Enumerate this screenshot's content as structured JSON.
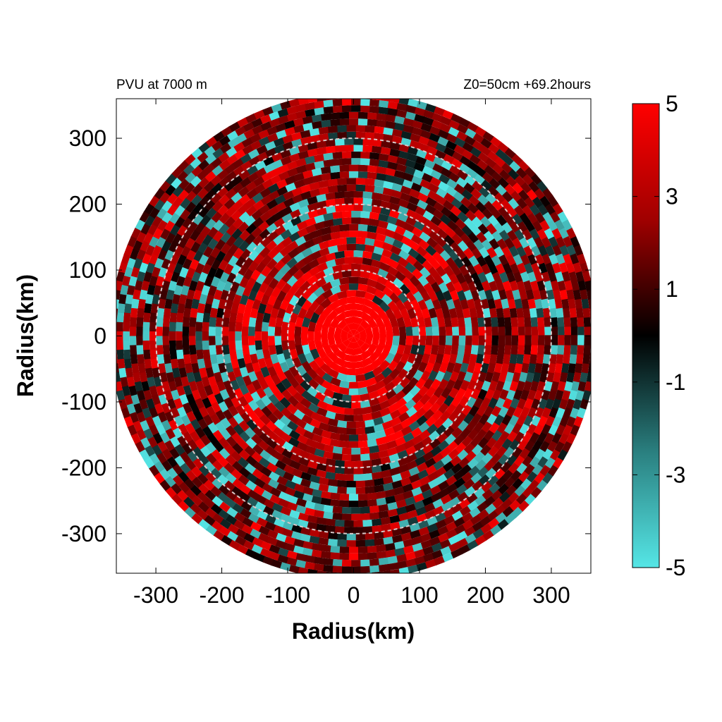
{
  "chart_data": {
    "type": "heatmap",
    "title_left": "PVU at  7000 m",
    "title_right": "Z0=50cm  +69.2hours",
    "xlabel": "Radius(km)",
    "ylabel": "Radius(km)",
    "xlim": [
      -360,
      360
    ],
    "ylim": [
      -360,
      360
    ],
    "x_ticks": [
      -300,
      -200,
      -100,
      0,
      100,
      200,
      300
    ],
    "y_ticks": [
      300,
      200,
      100,
      0,
      -100,
      -200,
      -300
    ],
    "grid": false,
    "domain_radius_km": 370,
    "reference_circles_km": [
      100,
      200,
      300
    ],
    "colorbar": {
      "min": -5,
      "max": 5,
      "ticks": [
        5,
        3,
        1,
        -1,
        -3,
        -5
      ],
      "colors": {
        "low": "#55e6e6",
        "mid": "#000000",
        "high": "#ff0000"
      }
    },
    "description_values": {
      "core_radius_km": 60,
      "core_value": 5
    }
  }
}
